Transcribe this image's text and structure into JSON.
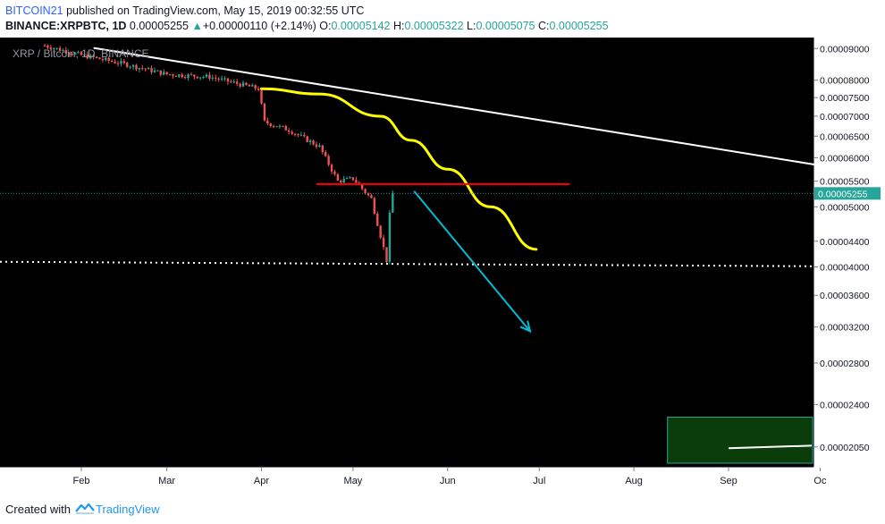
{
  "header": {
    "author": "BITCOIN21",
    "published_text": "published on TradingView.com, May 15, 2019 00:32:55 UTC",
    "symbol": "BINANCE:XRPBTC, 1D",
    "last_price": "0.00005255",
    "change_arrow": "▲",
    "change": "+0.00000110 (+2.14%)",
    "o_label": "O:",
    "o_value": "0.00005142",
    "h_label": "H:",
    "h_value": "0.00005322",
    "l_label": "L:",
    "l_value": "0.00005075",
    "c_label": "C:",
    "c_value": "0.00005255"
  },
  "footer": {
    "created_with": "Created with",
    "brand": "TradingView",
    "logo_icon": "tradingview-logo-icon"
  },
  "colors": {
    "background": "#000000",
    "candle_up": "#26a69a",
    "candle_down": "#ef5350",
    "price_label_bg": "#26a69a",
    "trendline": "#ffffff",
    "moving_average": "#ffff00",
    "support_line": "#ff0000",
    "arrow": "#00bcd4",
    "box_fill": "#0b3d0b",
    "box_border": "#26a69a"
  },
  "chart_data": {
    "type": "candlestick",
    "title": "XRP / Bitcoin, 1D, BINANCE",
    "x_tick_labels": [
      "Feb",
      "Mar",
      "Apr",
      "May",
      "Jun",
      "Jul",
      "Aug",
      "Sep",
      "Oc"
    ],
    "y_tick_labels": [
      "0.00009000",
      "0.00008000",
      "0.00007500",
      "0.00007000",
      "0.00006500",
      "0.00006000",
      "0.00005500",
      "0.00005000",
      "0.00004400",
      "0.00004000",
      "0.00003600",
      "0.00003200",
      "0.00002800",
      "0.00002400",
      "0.00002050"
    ],
    "scale": "logarithmic",
    "ylim": [
      1.93e-05,
      9.25e-05
    ],
    "current_price_label": "0.00005255",
    "current_price": 5.255e-05,
    "price_path": [
      [
        "2019-01-20",
        9.1e-05
      ],
      [
        "2019-02-01",
        8.78e-05
      ],
      [
        "2019-02-15",
        8.5e-05
      ],
      [
        "2019-03-01",
        8.18e-05
      ],
      [
        "2019-03-15",
        8.1e-05
      ],
      [
        "2019-03-31",
        7.75e-05
      ],
      [
        "2019-04-02",
        6.85e-05
      ],
      [
        "2019-04-10",
        6.65e-05
      ],
      [
        "2019-04-20",
        6.25e-05
      ],
      [
        "2019-04-26",
        5.5e-05
      ],
      [
        "2019-05-01",
        5.55e-05
      ],
      [
        "2019-05-07",
        5.15e-05
      ],
      [
        "2019-05-12",
        4.1e-05
      ],
      [
        "2019-05-13",
        4.85e-05
      ],
      [
        "2019-05-14",
        5.22e-05
      ]
    ],
    "annotations": {
      "trendline": {
        "from": [
          "2019-02-05",
          9.02e-05
        ],
        "to": [
          "2019-10-01",
          5.83e-05
        ],
        "color": "white"
      },
      "moving_average": {
        "color": "yellow",
        "points": [
          [
            "2019-04-01",
            7.75e-05
          ],
          [
            "2019-04-20",
            7.6e-05
          ],
          [
            "2019-05-10",
            7e-05
          ],
          [
            "2019-05-20",
            6.4e-05
          ],
          [
            "2019-06-01",
            5.75e-05
          ],
          [
            "2019-06-15",
            5e-05
          ],
          [
            "2019-06-30",
            4.27e-05
          ]
        ]
      },
      "support_line": {
        "price": 5.44e-05,
        "from": "2019-04-19",
        "to": "2019-07-11",
        "color": "red"
      },
      "horizontal_dotted": {
        "price": 4.05e-05,
        "color": "white"
      },
      "arrow": {
        "from": [
          "2019-05-21",
          5.3e-05
        ],
        "to": [
          "2019-06-28",
          3.15e-05
        ],
        "color": "cyan"
      },
      "box": {
        "from": "2019-08-12",
        "to": "2019-10-01",
        "top": 2.29e-05,
        "bottom": 1.93e-05
      },
      "box_line": {
        "from": [
          "2019-09-01",
          2.04e-05
        ],
        "to": [
          "2019-10-01",
          2.06e-05
        ]
      }
    }
  }
}
